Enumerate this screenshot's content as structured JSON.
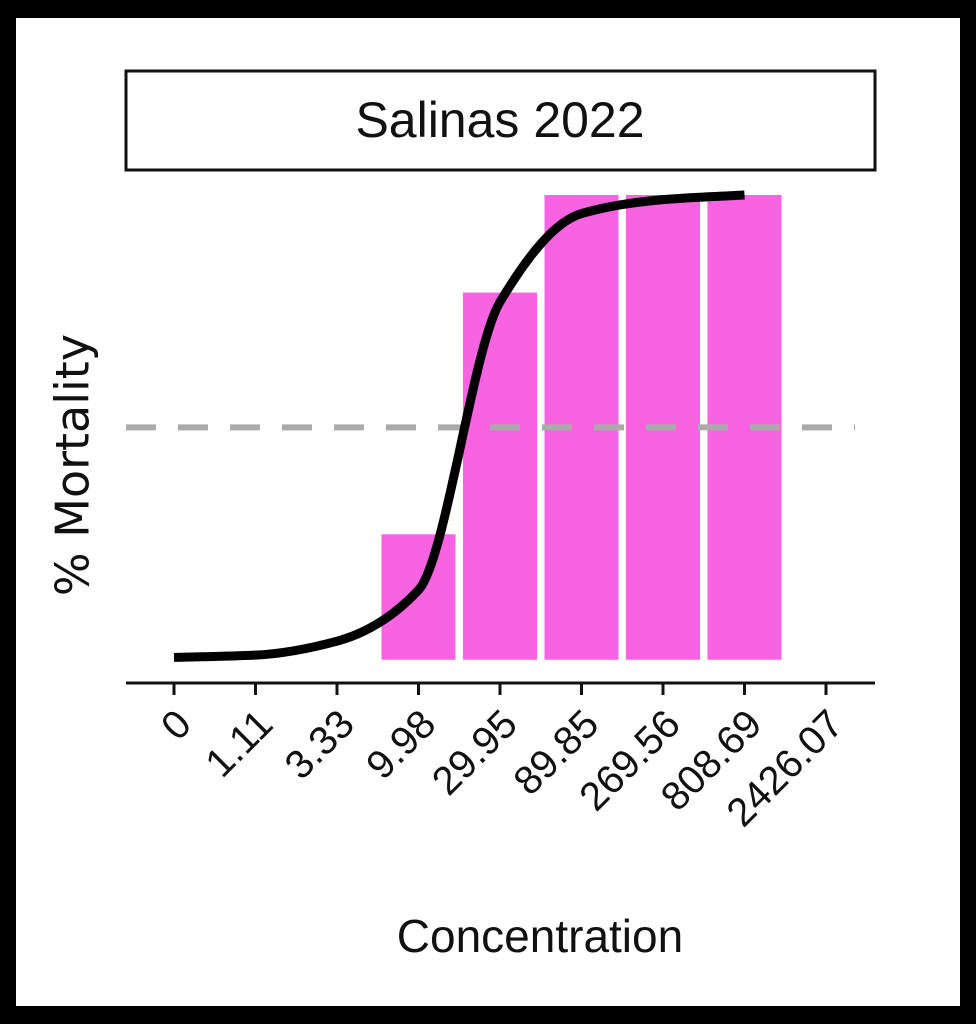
{
  "chart_data": {
    "type": "bar",
    "title": "Salinas 2022",
    "x_label": "Concentration",
    "y_label": "% Mortality",
    "categories": [
      "0",
      "1.11",
      "3.33",
      "9.98",
      "29.95",
      "89.85",
      "269.56",
      "808.69",
      "2426.07"
    ],
    "values": [
      0,
      0,
      0,
      27,
      79,
      100,
      100,
      100,
      0
    ],
    "color": "#f763e0",
    "fit": {
      "color": "#000000",
      "values": [
        0.5,
        1,
        4,
        15,
        77,
        96,
        99,
        100,
        null
      ]
    },
    "reference_line": {
      "value": 50,
      "color": "#aaaaaa",
      "style": "dashed"
    },
    "ylim": [
      -5,
      100
    ]
  }
}
